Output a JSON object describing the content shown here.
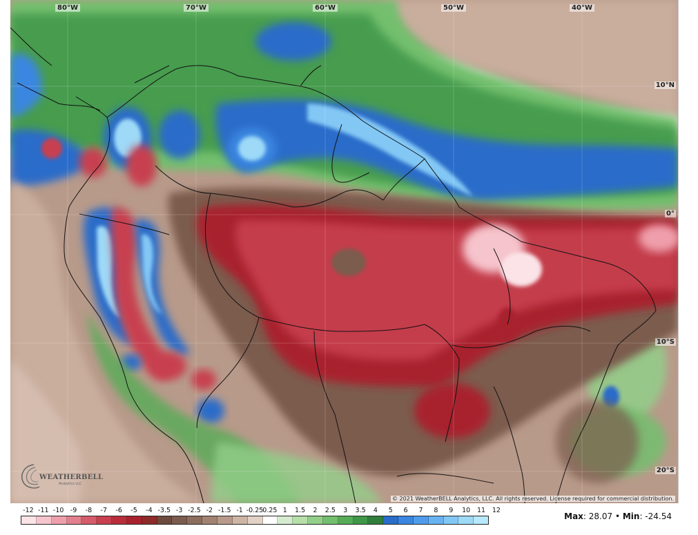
{
  "map": {
    "longitude_labels": [
      {
        "text": "80°W"
      },
      {
        "text": "70°W"
      },
      {
        "text": "60°W"
      },
      {
        "text": "50°W"
      },
      {
        "text": "40°W"
      }
    ],
    "latitude_labels": [
      {
        "text": "10°N"
      },
      {
        "text": "0°"
      },
      {
        "text": "10°S"
      },
      {
        "text": "20°S"
      }
    ],
    "copyright": "© 2021 WeatherBELL Analytics, LLC. All rights reserved. License required for commercial distribution."
  },
  "logo": {
    "name": "WEATHERBELL",
    "subtitle": "Analytics LLC"
  },
  "colorbar": {
    "tick_labels": [
      "-12",
      "-11",
      "-10",
      "-9",
      "-8",
      "-7",
      "-6",
      "-5",
      "-4",
      "-3.5",
      "-3",
      "-2.5",
      "-2",
      "-1.5",
      "-1",
      "-0.25",
      "0.25",
      "1",
      "1.5",
      "2",
      "2.5",
      "3",
      "3.5",
      "4",
      "5",
      "6",
      "7",
      "8",
      "9",
      "10",
      "11",
      "12"
    ],
    "colors": [
      "#fbe3e7",
      "#f6c4cc",
      "#ef9fab",
      "#e3808e",
      "#d55c6b",
      "#c8404f",
      "#b92d3b",
      "#a8222e",
      "#8d2a2a",
      "#6e4a3e",
      "#7c5b4e",
      "#8d6d5e",
      "#a38272",
      "#b89a8a",
      "#cdb5a6",
      "#e2d2c6",
      "#ffffff",
      "#d6ecd0",
      "#b5e0aa",
      "#93cf8a",
      "#73bf6e",
      "#56ac57",
      "#3f9748",
      "#2f7f3b",
      "#2a6cc9",
      "#3a86e0",
      "#4f9cec",
      "#6ab3f2",
      "#83c8f5",
      "#9edaf8",
      "#b8e8fb"
    ]
  },
  "stats": {
    "max_label": "Max",
    "max_value": ": 28.07 • ",
    "min_label": "Min",
    "min_value": ": -24.54"
  }
}
